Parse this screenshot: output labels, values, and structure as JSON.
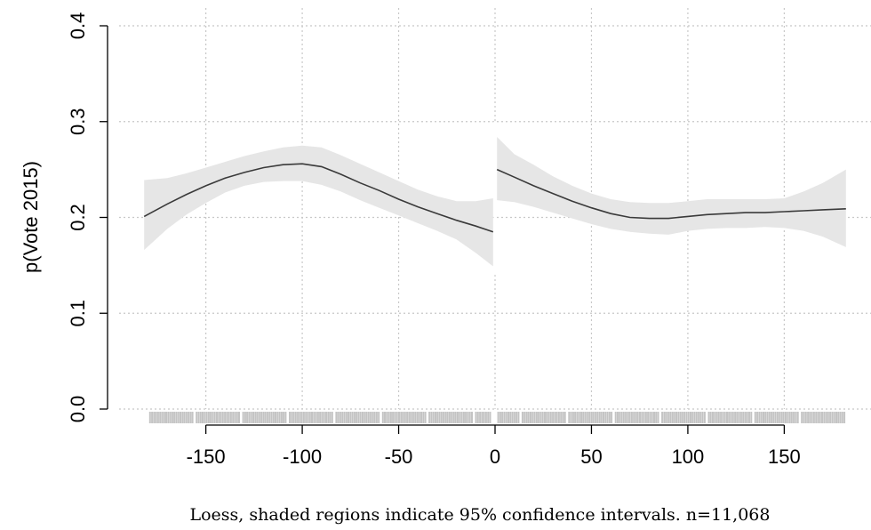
{
  "chart_data": {
    "type": "line",
    "title": "",
    "xlabel": "",
    "ylabel": "p(Vote 2015)",
    "caption": "Loess, shaded regions indicate 95% confidence intervals. n=11,068",
    "xlim": [
      -195,
      195
    ],
    "ylim": [
      0,
      0.4
    ],
    "x_ticks": [
      -150,
      -100,
      -50,
      0,
      50,
      100,
      150
    ],
    "x_tick_labels": [
      "-150",
      "-100",
      "-50",
      "0",
      "50",
      "100",
      "150"
    ],
    "y_ticks": [
      0,
      0.1,
      0.2,
      0.3,
      0.4
    ],
    "y_tick_labels": [
      "0.0",
      "0.1",
      "0.2",
      "0.3",
      "0.4"
    ],
    "grid": true,
    "cutoff": 0,
    "rug": true,
    "colors": {
      "line": "#3a3a3a",
      "band": "#e6e6e6",
      "grid": "#c8c8c8",
      "rug": "#c4c4c4"
    },
    "series": [
      {
        "segment": "left",
        "x": [
          -182,
          -170,
          -160,
          -150,
          -140,
          -130,
          -120,
          -110,
          -100,
          -90,
          -80,
          -70,
          -60,
          -50,
          -40,
          -30,
          -20,
          -10,
          -1
        ],
        "y": [
          0.201,
          0.214,
          0.224,
          0.233,
          0.241,
          0.247,
          0.252,
          0.255,
          0.256,
          0.253,
          0.245,
          0.236,
          0.228,
          0.219,
          0.211,
          0.204,
          0.197,
          0.191,
          0.185
        ],
        "lower": [
          0.166,
          0.188,
          0.203,
          0.215,
          0.226,
          0.233,
          0.237,
          0.238,
          0.238,
          0.234,
          0.227,
          0.218,
          0.21,
          0.202,
          0.194,
          0.186,
          0.177,
          0.163,
          0.149
        ],
        "upper": [
          0.239,
          0.241,
          0.246,
          0.252,
          0.258,
          0.264,
          0.269,
          0.273,
          0.275,
          0.273,
          0.265,
          0.256,
          0.247,
          0.238,
          0.229,
          0.222,
          0.217,
          0.217,
          0.22
        ]
      },
      {
        "segment": "right",
        "x": [
          1,
          10,
          20,
          30,
          40,
          50,
          60,
          70,
          80,
          90,
          100,
          110,
          120,
          130,
          140,
          150,
          160,
          170,
          182
        ],
        "y": [
          0.25,
          0.242,
          0.233,
          0.225,
          0.217,
          0.21,
          0.204,
          0.2,
          0.199,
          0.199,
          0.201,
          0.203,
          0.204,
          0.205,
          0.205,
          0.206,
          0.207,
          0.208,
          0.209
        ],
        "lower": [
          0.218,
          0.216,
          0.211,
          0.205,
          0.199,
          0.193,
          0.188,
          0.185,
          0.183,
          0.182,
          0.186,
          0.188,
          0.189,
          0.189,
          0.19,
          0.189,
          0.186,
          0.18,
          0.169
        ],
        "upper": [
          0.284,
          0.266,
          0.255,
          0.243,
          0.233,
          0.225,
          0.219,
          0.216,
          0.215,
          0.215,
          0.217,
          0.219,
          0.219,
          0.219,
          0.219,
          0.22,
          0.227,
          0.236,
          0.25
        ]
      }
    ]
  }
}
